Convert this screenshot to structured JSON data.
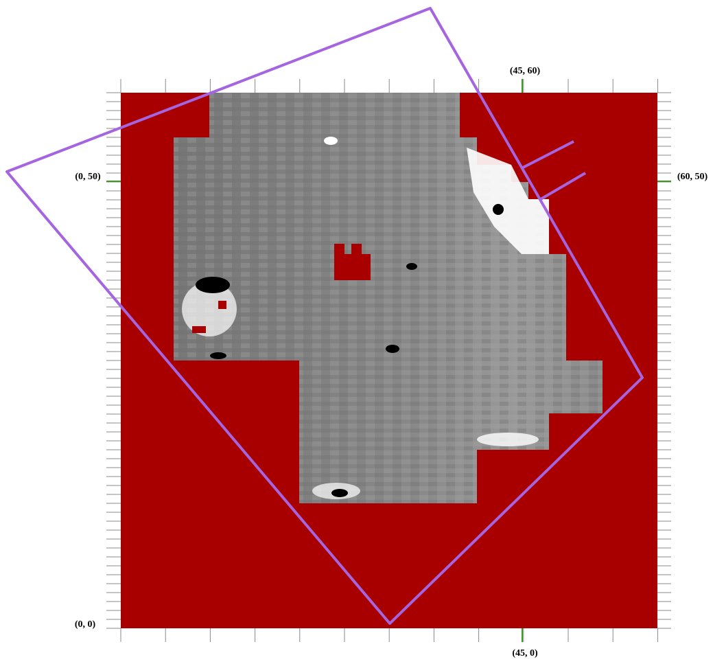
{
  "labels": {
    "top": "(45, 60)",
    "left": "(0, 50)",
    "right": "(60, 50)",
    "origin": "(0, 0)",
    "bottom": "(45, 0)"
  }
}
